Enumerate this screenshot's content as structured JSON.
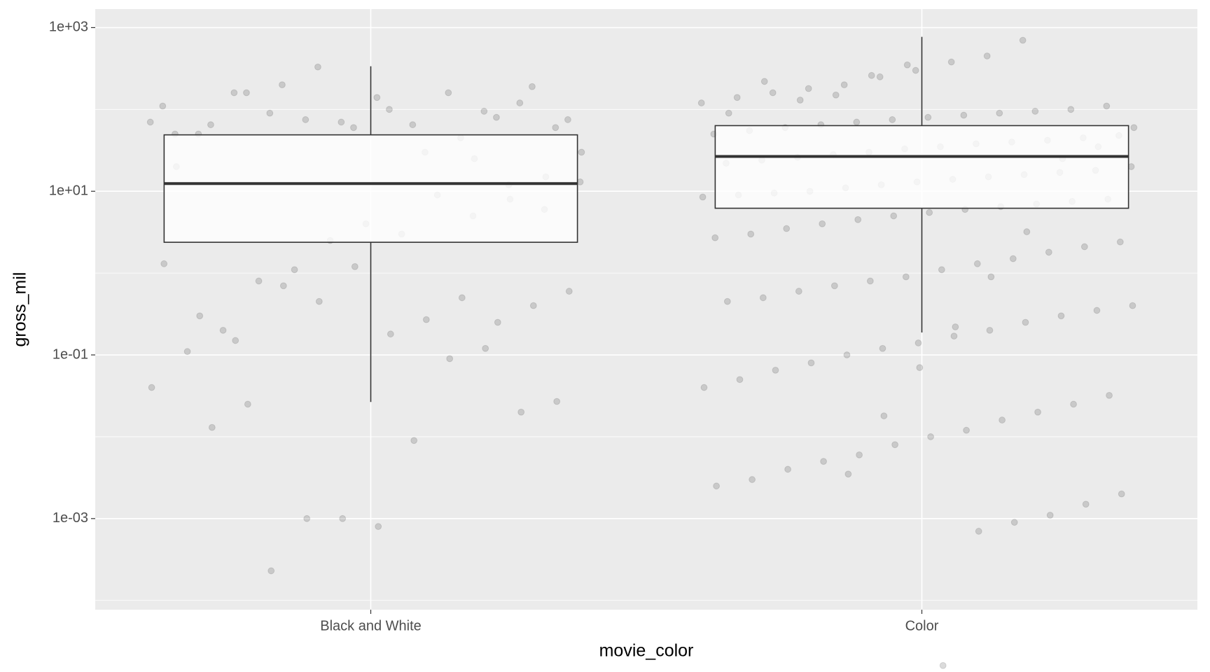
{
  "chart_data": {
    "type": "boxplot",
    "x_label": "movie_color",
    "y_label": "gross_mil",
    "categories": [
      "Black and White",
      "Color"
    ],
    "log_scale": true,
    "grid": true,
    "ylim": [
      7.7e-05,
      1683
    ],
    "yticks": [
      {
        "value": 1000,
        "label": "1e+03"
      },
      {
        "value": 10,
        "label": "1e+01"
      },
      {
        "value": 0.1,
        "label": "1e-01"
      },
      {
        "value": 0.001,
        "label": "1e-03"
      }
    ],
    "y_minor_ticks": [
      100,
      1,
      0.01,
      0.0001
    ],
    "boxes": [
      {
        "whisker_low": 0.0266,
        "q1": 2.38,
        "median": 12.4,
        "q3": 48.9,
        "whisker_high": 337
      },
      {
        "whisker_low": 0.188,
        "q1": 6.2,
        "median": 26.6,
        "q3": 63.4,
        "whisker_high": 771
      }
    ],
    "points": [
      [
        70,
        60,
        120,
        95,
        160,
        65,
        140,
        70,
        75,
        90,
        160,
        50,
        110,
        75,
        190,
        80,
        45,
        30,
        100,
        60,
        330,
        200,
        160,
        65,
        50,
        13,
        6,
        12,
        5,
        9,
        3,
        4,
        2.5,
        1.1,
        0.8,
        0.2,
        0.11,
        0.04,
        0.027,
        0.02,
        0.12,
        0.09,
        0.009,
        0.0008,
        0.001,
        0.001,
        0.00023,
        0.15,
        0.3,
        1.3,
        0.6,
        0.4,
        0.25,
        0.5,
        0.27,
        0.18,
        1.2,
        0.45,
        0.7,
        0.025,
        0.013,
        20,
        30,
        15,
        8,
        25
      ],
      [
        700,
        450,
        380,
        300,
        250,
        200,
        180,
        160,
        140,
        120,
        110,
        100,
        95,
        90,
        85,
        80,
        75,
        70,
        65,
        60,
        55,
        50,
        48,
        45,
        42,
        40,
        38,
        35,
        33,
        30,
        28,
        26,
        24,
        22,
        20,
        18,
        17,
        16,
        15,
        14,
        13,
        12,
        11,
        10,
        9.5,
        9,
        8.5,
        8,
        7.5,
        7,
        6.5,
        6,
        5.5,
        5,
        4.5,
        4,
        3.5,
        3,
        2.7,
        2.4,
        2.1,
        1.8,
        1.5,
        1.3,
        1.1,
        0.9,
        0.8,
        0.7,
        0.6,
        0.5,
        0.45,
        0.4,
        0.35,
        0.3,
        0.25,
        0.2,
        0.17,
        0.14,
        0.12,
        0.1,
        0.08,
        0.065,
        0.05,
        0.04,
        0.032,
        0.025,
        0.02,
        0.016,
        0.012,
        0.01,
        0.008,
        0.006,
        0.005,
        0.004,
        0.003,
        0.0025,
        0.002,
        0.0015,
        0.0011,
        0.0009,
        0.0007,
        1.6e-05,
        350,
        260,
        150,
        130,
        220,
        90,
        60,
        35,
        25,
        3.2,
        0.9,
        0.22,
        0.07,
        0.018,
        0.0035
      ]
    ]
  }
}
